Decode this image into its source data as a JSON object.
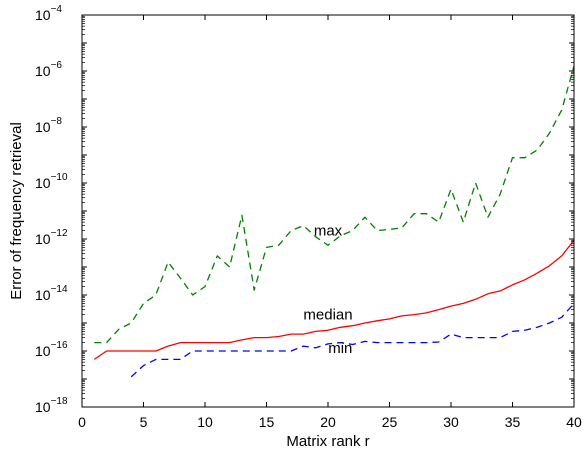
{
  "chart_data": {
    "type": "line",
    "title": "",
    "xlabel": "Matrix rank r",
    "ylabel": "Error of frequency retrieval",
    "xlim": [
      0,
      40
    ],
    "ylim": [
      1e-18,
      0.0001
    ],
    "yscale": "log",
    "grid": false,
    "legend": "none",
    "x_ticks": [
      0,
      5,
      10,
      15,
      20,
      25,
      30,
      35,
      40
    ],
    "y_ticks": [
      {
        "base": "10",
        "exp": "−4",
        "value": 0.0001
      },
      {
        "base": "10",
        "exp": "−6",
        "value": 1e-06
      },
      {
        "base": "10",
        "exp": "−8",
        "value": 1e-08
      },
      {
        "base": "10",
        "exp": "−10",
        "value": 1e-10
      },
      {
        "base": "10",
        "exp": "−12",
        "value": 1e-12
      },
      {
        "base": "10",
        "exp": "−14",
        "value": 1e-14
      },
      {
        "base": "10",
        "exp": "−16",
        "value": 1e-16
      },
      {
        "base": "10",
        "exp": "−18",
        "value": 1e-18
      }
    ],
    "series": [
      {
        "name": "max",
        "color": "#008000",
        "dash": "dashed",
        "label_at": [
          20,
          2e-12
        ],
        "x": [
          1,
          2,
          3,
          4,
          5,
          6,
          7,
          8,
          9,
          10,
          11,
          12,
          13,
          14,
          15,
          16,
          17,
          18,
          19,
          20,
          21,
          22,
          23,
          24,
          25,
          26,
          27,
          28,
          29,
          30,
          31,
          32,
          33,
          34,
          35,
          36,
          37,
          38,
          39,
          40
        ],
        "y": [
          2e-16,
          2e-16,
          6e-16,
          1e-15,
          5e-15,
          1e-14,
          1.5e-13,
          4e-14,
          1e-14,
          2e-14,
          2.5e-13,
          1e-13,
          7e-12,
          1.5e-14,
          5e-13,
          6e-13,
          2e-12,
          3e-12,
          1.2e-12,
          6e-13,
          1.3e-12,
          2e-12,
          6e-12,
          2e-12,
          2.2e-12,
          2.5e-12,
          8e-12,
          8e-12,
          4e-12,
          6e-11,
          4e-12,
          1e-10,
          6e-12,
          4e-11,
          8e-10,
          8e-10,
          1.5e-09,
          6e-09,
          4e-08,
          1.5e-06
        ]
      },
      {
        "name": "median",
        "color": "#ff0000",
        "dash": "solid",
        "label_at": [
          20,
          2e-15
        ],
        "x": [
          1,
          2,
          3,
          4,
          5,
          6,
          7,
          8,
          9,
          10,
          11,
          12,
          13,
          14,
          15,
          16,
          17,
          18,
          19,
          20,
          21,
          22,
          23,
          24,
          25,
          26,
          27,
          28,
          29,
          30,
          31,
          32,
          33,
          34,
          35,
          36,
          37,
          38,
          39,
          40
        ],
        "y": [
          5e-17,
          1e-16,
          1e-16,
          1e-16,
          1e-16,
          1e-16,
          1.5e-16,
          2e-16,
          2e-16,
          2e-16,
          2e-16,
          2e-16,
          2.5e-16,
          3e-16,
          3e-16,
          3.3e-16,
          4e-16,
          4e-16,
          5e-16,
          5.5e-16,
          7e-16,
          8e-16,
          1e-15,
          1.2e-15,
          1.4e-15,
          1.8e-15,
          2e-15,
          2.3e-15,
          3e-15,
          4e-15,
          5e-15,
          7e-15,
          1.1e-14,
          1.4e-14,
          2.3e-14,
          3.5e-14,
          6e-14,
          1.1e-13,
          2.5e-13,
          9e-13
        ]
      },
      {
        "name": "min",
        "color": "#0000ff",
        "dash": "dashed",
        "label_at": [
          21,
          1.3e-16
        ],
        "x": [
          4,
          5,
          6,
          7,
          8,
          9,
          10,
          11,
          12,
          13,
          14,
          15,
          16,
          17,
          18,
          19,
          20,
          21,
          22,
          23,
          24,
          25,
          26,
          27,
          28,
          29,
          30,
          31,
          32,
          33,
          34,
          35,
          36,
          37,
          38,
          39,
          40
        ],
        "y": [
          1.2e-17,
          3e-17,
          5e-17,
          5e-17,
          5e-17,
          1e-16,
          1e-16,
          1e-16,
          1e-16,
          1e-16,
          1e-16,
          1e-16,
          1e-16,
          1e-16,
          1.5e-16,
          1.3e-16,
          1.8e-16,
          2e-16,
          1.7e-16,
          2.2e-16,
          2e-16,
          2e-16,
          2e-16,
          2e-16,
          2e-16,
          2.1e-16,
          4e-16,
          3e-16,
          3e-16,
          3e-16,
          3e-16,
          5e-16,
          5.5e-16,
          7e-16,
          1e-15,
          1.6e-15,
          5e-15
        ]
      }
    ]
  }
}
